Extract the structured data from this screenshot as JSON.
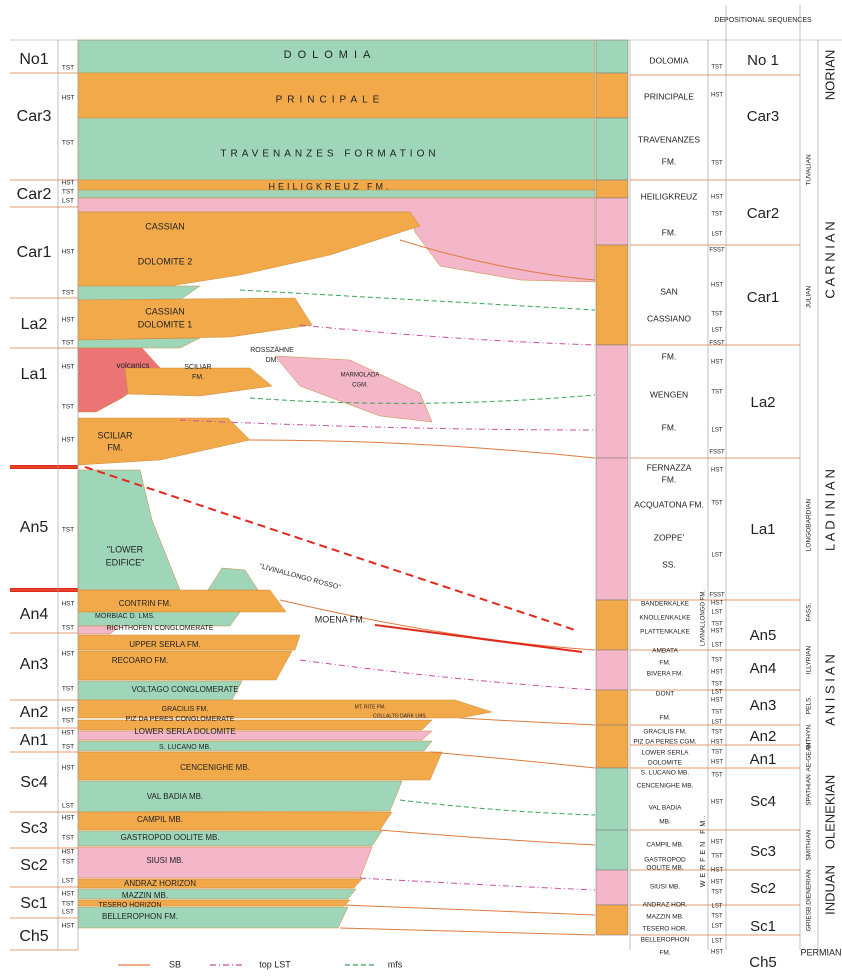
{
  "header": {
    "depositional_sequences": "DEPOSITIONAL SEQUENCES"
  },
  "left_sequences": [
    "No1",
    "Car3",
    "Car2",
    "Car1",
    "La2",
    "La1",
    "An5",
    "An4",
    "An3",
    "An2",
    "An1",
    "Sc4",
    "Sc3",
    "Sc2",
    "Sc1",
    "Ch5"
  ],
  "left_tracts": [
    "TST",
    "HST",
    "TST",
    "HST",
    "TST",
    "LST",
    "HST",
    "TST",
    "HST",
    "TST",
    "HST",
    "TST",
    "HST",
    "TST",
    "HST",
    "TST",
    "HST",
    "TST",
    "HST",
    "TST",
    "HST",
    "TST",
    "HST",
    "LST",
    "HST",
    "TST",
    "HST",
    "TST",
    "LST",
    "HST",
    "TST",
    "LST",
    "HST"
  ],
  "formations": [
    "DOLOMIA",
    "PRINCIPALE",
    "TRAVENANZES FORMATION",
    "HEILIGKREUZ FM.",
    "CASSIAN",
    "DOLOMITE 2",
    "CASSIAN",
    "DOLOMITE 1",
    "volcanics",
    "SCILIAR",
    "FM.",
    "ROSSZÄHNE",
    "DM.",
    "MARMOLADA",
    "CGM.",
    "SCILIAR",
    "FM.",
    "\"LOWER",
    "EDIFICE\"",
    "\"LIVINALLONGO ROSSO\"",
    "CONTRIN FM.",
    "MORBIAC D. LMS.",
    "RICHTHOFEN CONGLOMERATE",
    "MOENA FM.",
    "UPPER SERLA FM.",
    "RECOARO FM.",
    "VOLTAGO CONGLOMERATE",
    "GRACILIS FM.",
    "MT. RITE FM.",
    "PIZ DA PERES CONGLOMERATE",
    "COLLALTO DARK LMS.",
    "LOWER SERLA DOLOMITE",
    "S. LUCANO MB.",
    "CENCENIGHE MB.",
    "VAL BADIA MB.",
    "CAMPIL MB.",
    "GASTROPOD OOLITE MB.",
    "SIUSI MB.",
    "ANDRAZ HORIZON",
    "MAZZIN MB.",
    "TESERO HORIZON",
    "BELLEROPHON FM."
  ],
  "column_formations": [
    "DOLOMIA",
    "PRINCIPALE",
    "TRAVENANZES",
    "FM.",
    "HEILIGKREUZ",
    "FM.",
    "SAN",
    "CASSIANO",
    "FM.",
    "WENGEN",
    "FM.",
    "FERNAZZA",
    "FM.",
    "ACQUATONA FM.",
    "ZOPPE'",
    "SS.",
    "BANDERKALKE",
    "KNOLLENKALKE",
    "PLATTENKALKE",
    "AMBATA",
    "FM.",
    "BIVERA FM.",
    "DONT",
    "FM.",
    "GRACILIS FM.",
    "PIZ DA PERES CGM.",
    "LOWER SERLA",
    "DOLOMITE",
    "S. LUCANO MB.",
    "CENCENIGHE MB.",
    "VAL BADIA",
    "MB.",
    "CAMPIL MB.",
    "GASTROPOD",
    "OOLITE MB.",
    "SIUSI MB.",
    "ANDRAZ HOR.",
    "MAZZIN MB.",
    "TESERO HOR.",
    "BELLEROPHON",
    "FM.",
    "LIVINALLONGO FM.",
    "WERFEN FM."
  ],
  "right_tracts": [
    "TST",
    "HST",
    "TST",
    "HST",
    "TST",
    "LST",
    "FSST",
    "HST",
    "TST",
    "LST",
    "FSST",
    "HST",
    "TST",
    "LST",
    "FSST",
    "HST",
    "TST",
    "LST",
    "FSST",
    "HST",
    "LST",
    "TST",
    "HST",
    "LST",
    "TST",
    "HST",
    "TST",
    "LST",
    "HST",
    "TST",
    "LST",
    "TST",
    "HST",
    "TST",
    "HST",
    "TST",
    "HST",
    "HST",
    "TST",
    "HST",
    "HST",
    "TST",
    "LST",
    "TST",
    "LST",
    "LST",
    "HST"
  ],
  "right_sequences": [
    "No 1",
    "Car3",
    "Car2",
    "Car1",
    "La2",
    "La1",
    "An5",
    "An4",
    "An3",
    "An2",
    "An1",
    "Sc4",
    "Sc3",
    "Sc2",
    "Sc1",
    "Ch5"
  ],
  "substages": [
    "TUVALIAN",
    "JULIAN",
    "LONGOBARDIAN",
    "FASS.",
    "ILLYRIAN",
    "PELS.",
    "BITHYN.",
    "AE-GEAN",
    "SPATHIAN",
    "SMITHIAN",
    "DIENERIAN",
    "GRIESB."
  ],
  "stages": [
    "NORIAN",
    "C A R N I A N",
    "L A D I N I A N",
    "A N I S I A N",
    "OLENEKIAN",
    "INDUAN",
    "PERMIAN"
  ],
  "legend": [
    "SB",
    "top LST",
    "mfs"
  ]
}
